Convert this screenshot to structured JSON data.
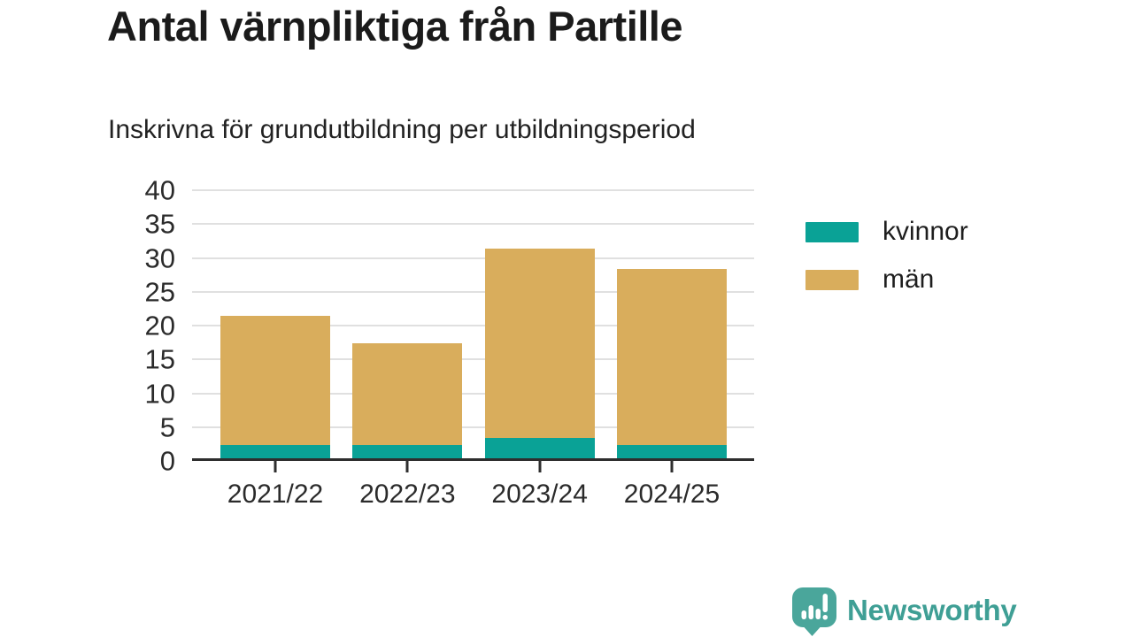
{
  "header": {
    "title": "Antal värnpliktiga från Partille",
    "subtitle": "Inskrivna för grundutbildning per utbildningsperiod"
  },
  "chart_data": {
    "type": "bar",
    "stacked": true,
    "title": "Antal värnpliktiga från Partille",
    "subtitle": "Inskrivna för grundutbildning per utbildningsperiod",
    "categories": [
      "2021/22",
      "2022/23",
      "2023/24",
      "2024/25"
    ],
    "series": [
      {
        "name": "kvinnor",
        "color": "#0aa296",
        "values": [
          2,
          2,
          3,
          2
        ]
      },
      {
        "name": "män",
        "color": "#d9ad5c",
        "values": [
          19,
          15,
          28,
          26
        ]
      }
    ],
    "totals": [
      21,
      17,
      31,
      28
    ],
    "yticks": [
      0,
      5,
      10,
      15,
      20,
      25,
      30,
      35,
      40
    ],
    "ylim": [
      0,
      40
    ],
    "xlabel": "",
    "ylabel": "",
    "grid": "horizontal",
    "legend_position": "right",
    "axis_color": "#2e2e2e",
    "gridline_color": "#e0e0e0"
  },
  "footer": {
    "brand": "Newsworthy",
    "brand_text_color": "#3f9f95",
    "brand_icon_color": "#4aa69b"
  }
}
